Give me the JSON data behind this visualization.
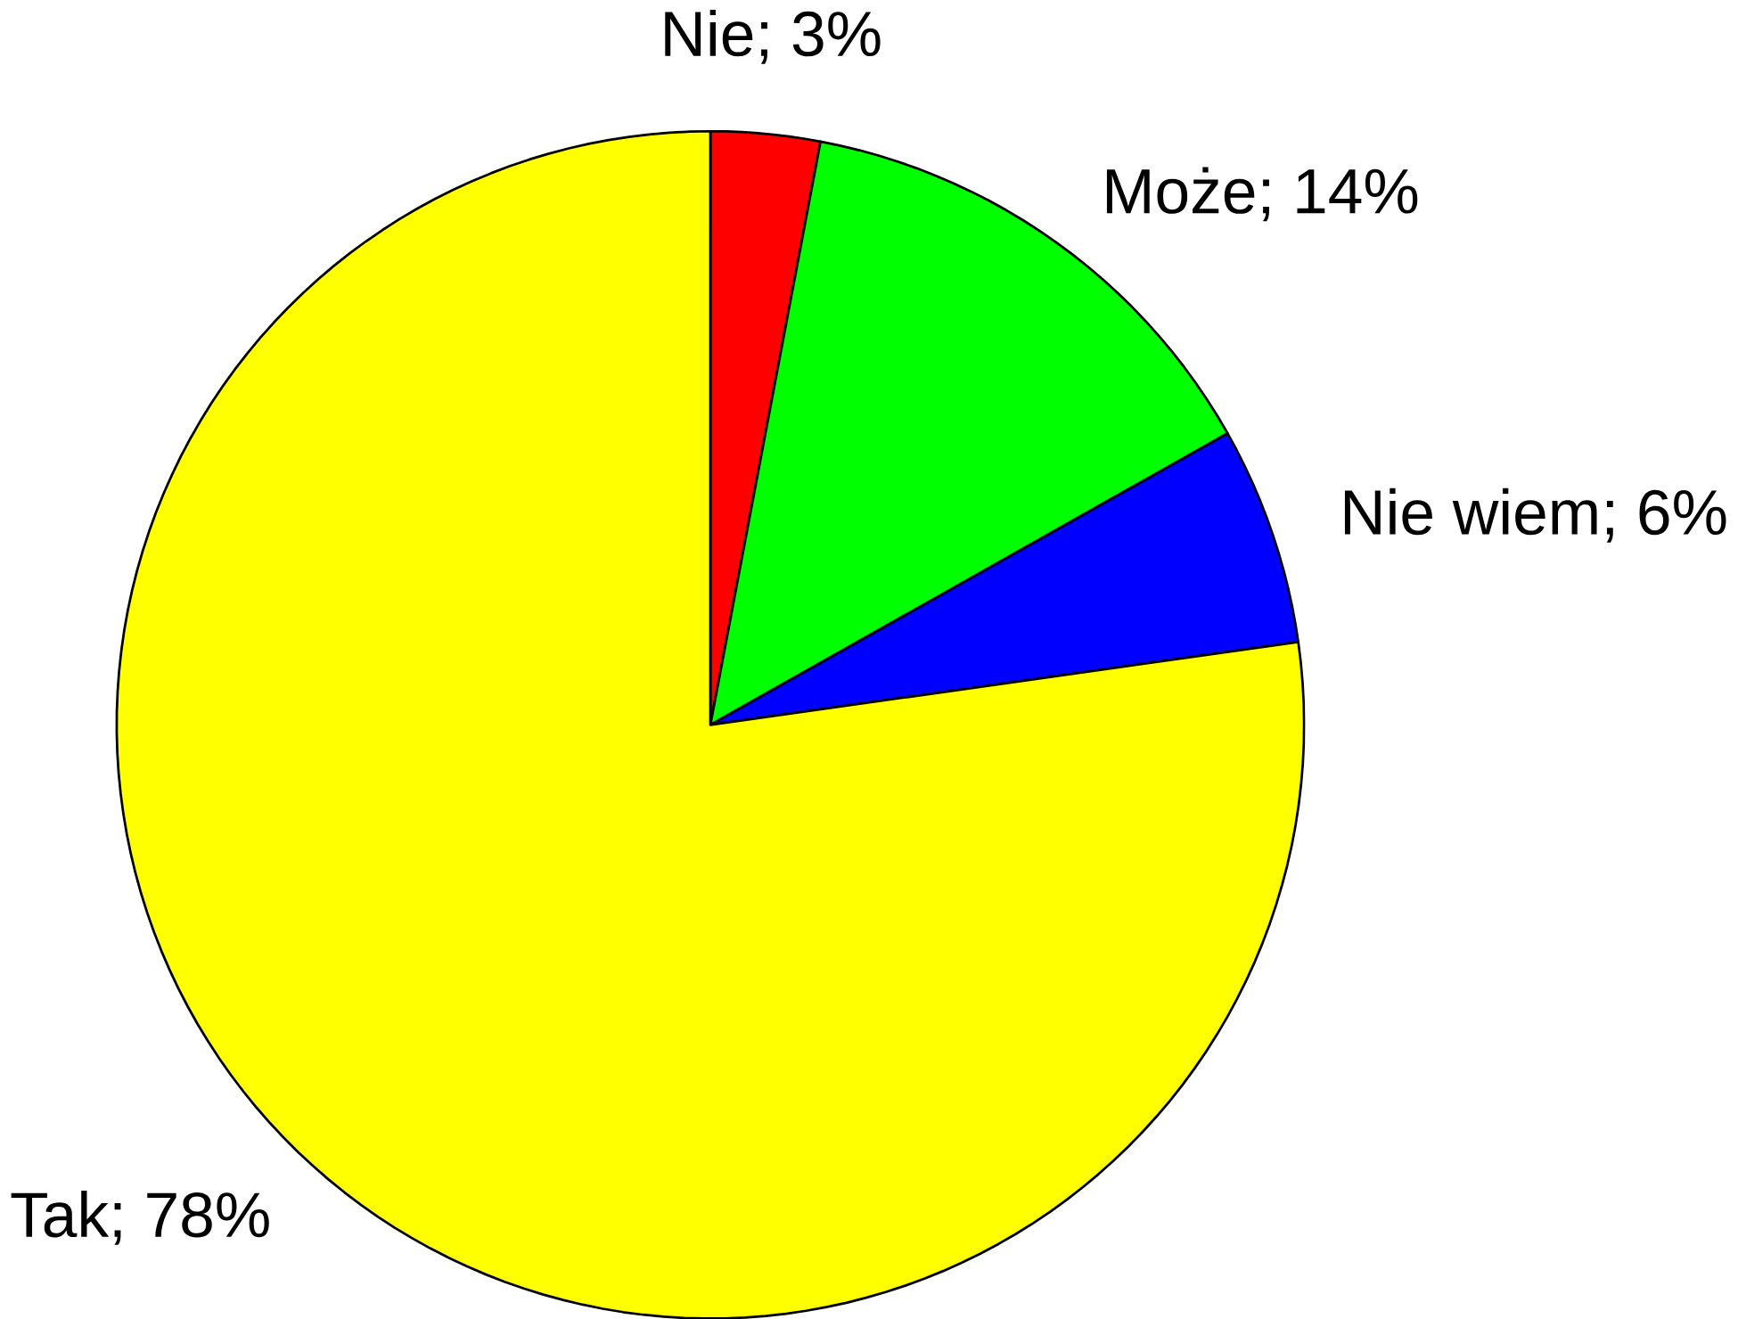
{
  "chart_data": {
    "type": "pie",
    "categories": [
      "Nie",
      "Może",
      "Nie wiem",
      "Tak"
    ],
    "values": [
      3,
      14,
      6,
      78
    ],
    "colors": [
      "#ff0000",
      "#00ff00",
      "#0000ff",
      "#ffff00"
    ],
    "value_labels": [
      "; 3%",
      "; 14%",
      "; 6%",
      "; 78%"
    ]
  }
}
